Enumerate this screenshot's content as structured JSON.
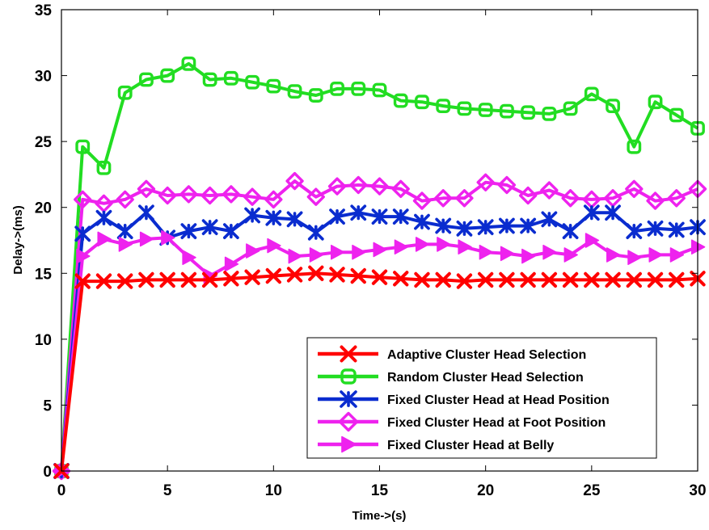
{
  "chart_data": {
    "type": "line",
    "title": "",
    "xlabel": "Time->(s)",
    "ylabel": "Delay->(ms)",
    "xlim": [
      0,
      30
    ],
    "ylim": [
      0,
      35
    ],
    "xticks": [
      0,
      5,
      10,
      15,
      20,
      25,
      30
    ],
    "yticks": [
      0,
      5,
      10,
      15,
      20,
      25,
      30,
      35
    ],
    "grid": false,
    "legend_position": "bottom-right",
    "x": [
      0,
      1,
      2,
      3,
      4,
      5,
      6,
      7,
      8,
      9,
      10,
      11,
      12,
      13,
      14,
      15,
      16,
      17,
      18,
      19,
      20,
      21,
      22,
      23,
      24,
      25,
      26,
      27,
      28,
      29,
      30
    ],
    "series": [
      {
        "name": "Adaptive Cluster Head Selection",
        "color": "#ff0000",
        "marker": "x-cross",
        "values": [
          0,
          14.4,
          14.4,
          14.4,
          14.5,
          14.5,
          14.5,
          14.5,
          14.6,
          14.7,
          14.8,
          14.9,
          15.0,
          14.9,
          14.8,
          14.7,
          14.6,
          14.5,
          14.5,
          14.4,
          14.5,
          14.5,
          14.5,
          14.5,
          14.5,
          14.5,
          14.5,
          14.5,
          14.5,
          14.5,
          14.6
        ]
      },
      {
        "name": "Random Cluster Head Selection",
        "color": "#22dd22",
        "marker": "square",
        "values": [
          0,
          24.6,
          23.0,
          28.7,
          29.7,
          30.0,
          30.9,
          29.7,
          29.8,
          29.5,
          29.2,
          28.8,
          28.5,
          29.0,
          29.0,
          28.9,
          28.1,
          28.0,
          27.7,
          27.5,
          27.4,
          27.3,
          27.2,
          27.1,
          27.5,
          28.6,
          27.7,
          24.6,
          28.0,
          27.0,
          26.0
        ]
      },
      {
        "name": "Fixed Cluster Head at Head Position",
        "color": "#0a2ccf",
        "marker": "star",
        "values": [
          0,
          18.0,
          19.2,
          18.2,
          19.6,
          17.7,
          18.2,
          18.5,
          18.2,
          19.4,
          19.2,
          19.1,
          18.1,
          19.3,
          19.6,
          19.3,
          19.3,
          18.9,
          18.6,
          18.4,
          18.5,
          18.6,
          18.6,
          19.1,
          18.2,
          19.6,
          19.6,
          18.2,
          18.4,
          18.3,
          18.5
        ]
      },
      {
        "name": "Fixed Cluster Head at Foot Position",
        "color": "#ee22ee",
        "marker": "diamond",
        "values": [
          0,
          20.6,
          20.3,
          20.6,
          21.4,
          20.9,
          21.0,
          20.9,
          21.0,
          20.8,
          20.6,
          22.0,
          20.8,
          21.6,
          21.7,
          21.6,
          21.4,
          20.5,
          20.7,
          20.7,
          21.9,
          21.7,
          20.9,
          21.3,
          20.7,
          20.6,
          20.7,
          21.4,
          20.5,
          20.7,
          21.4
        ]
      },
      {
        "name": "Fixed Cluster Head at Belly",
        "color": "#ee22ee",
        "marker": "triangle-right",
        "values": [
          0,
          16.3,
          17.6,
          17.2,
          17.6,
          17.7,
          16.2,
          14.8,
          15.7,
          16.7,
          17.1,
          16.3,
          16.4,
          16.6,
          16.6,
          16.8,
          17.0,
          17.2,
          17.2,
          17.0,
          16.6,
          16.5,
          16.3,
          16.6,
          16.4,
          17.5,
          16.4,
          16.2,
          16.4,
          16.4,
          17.0
        ]
      }
    ]
  }
}
